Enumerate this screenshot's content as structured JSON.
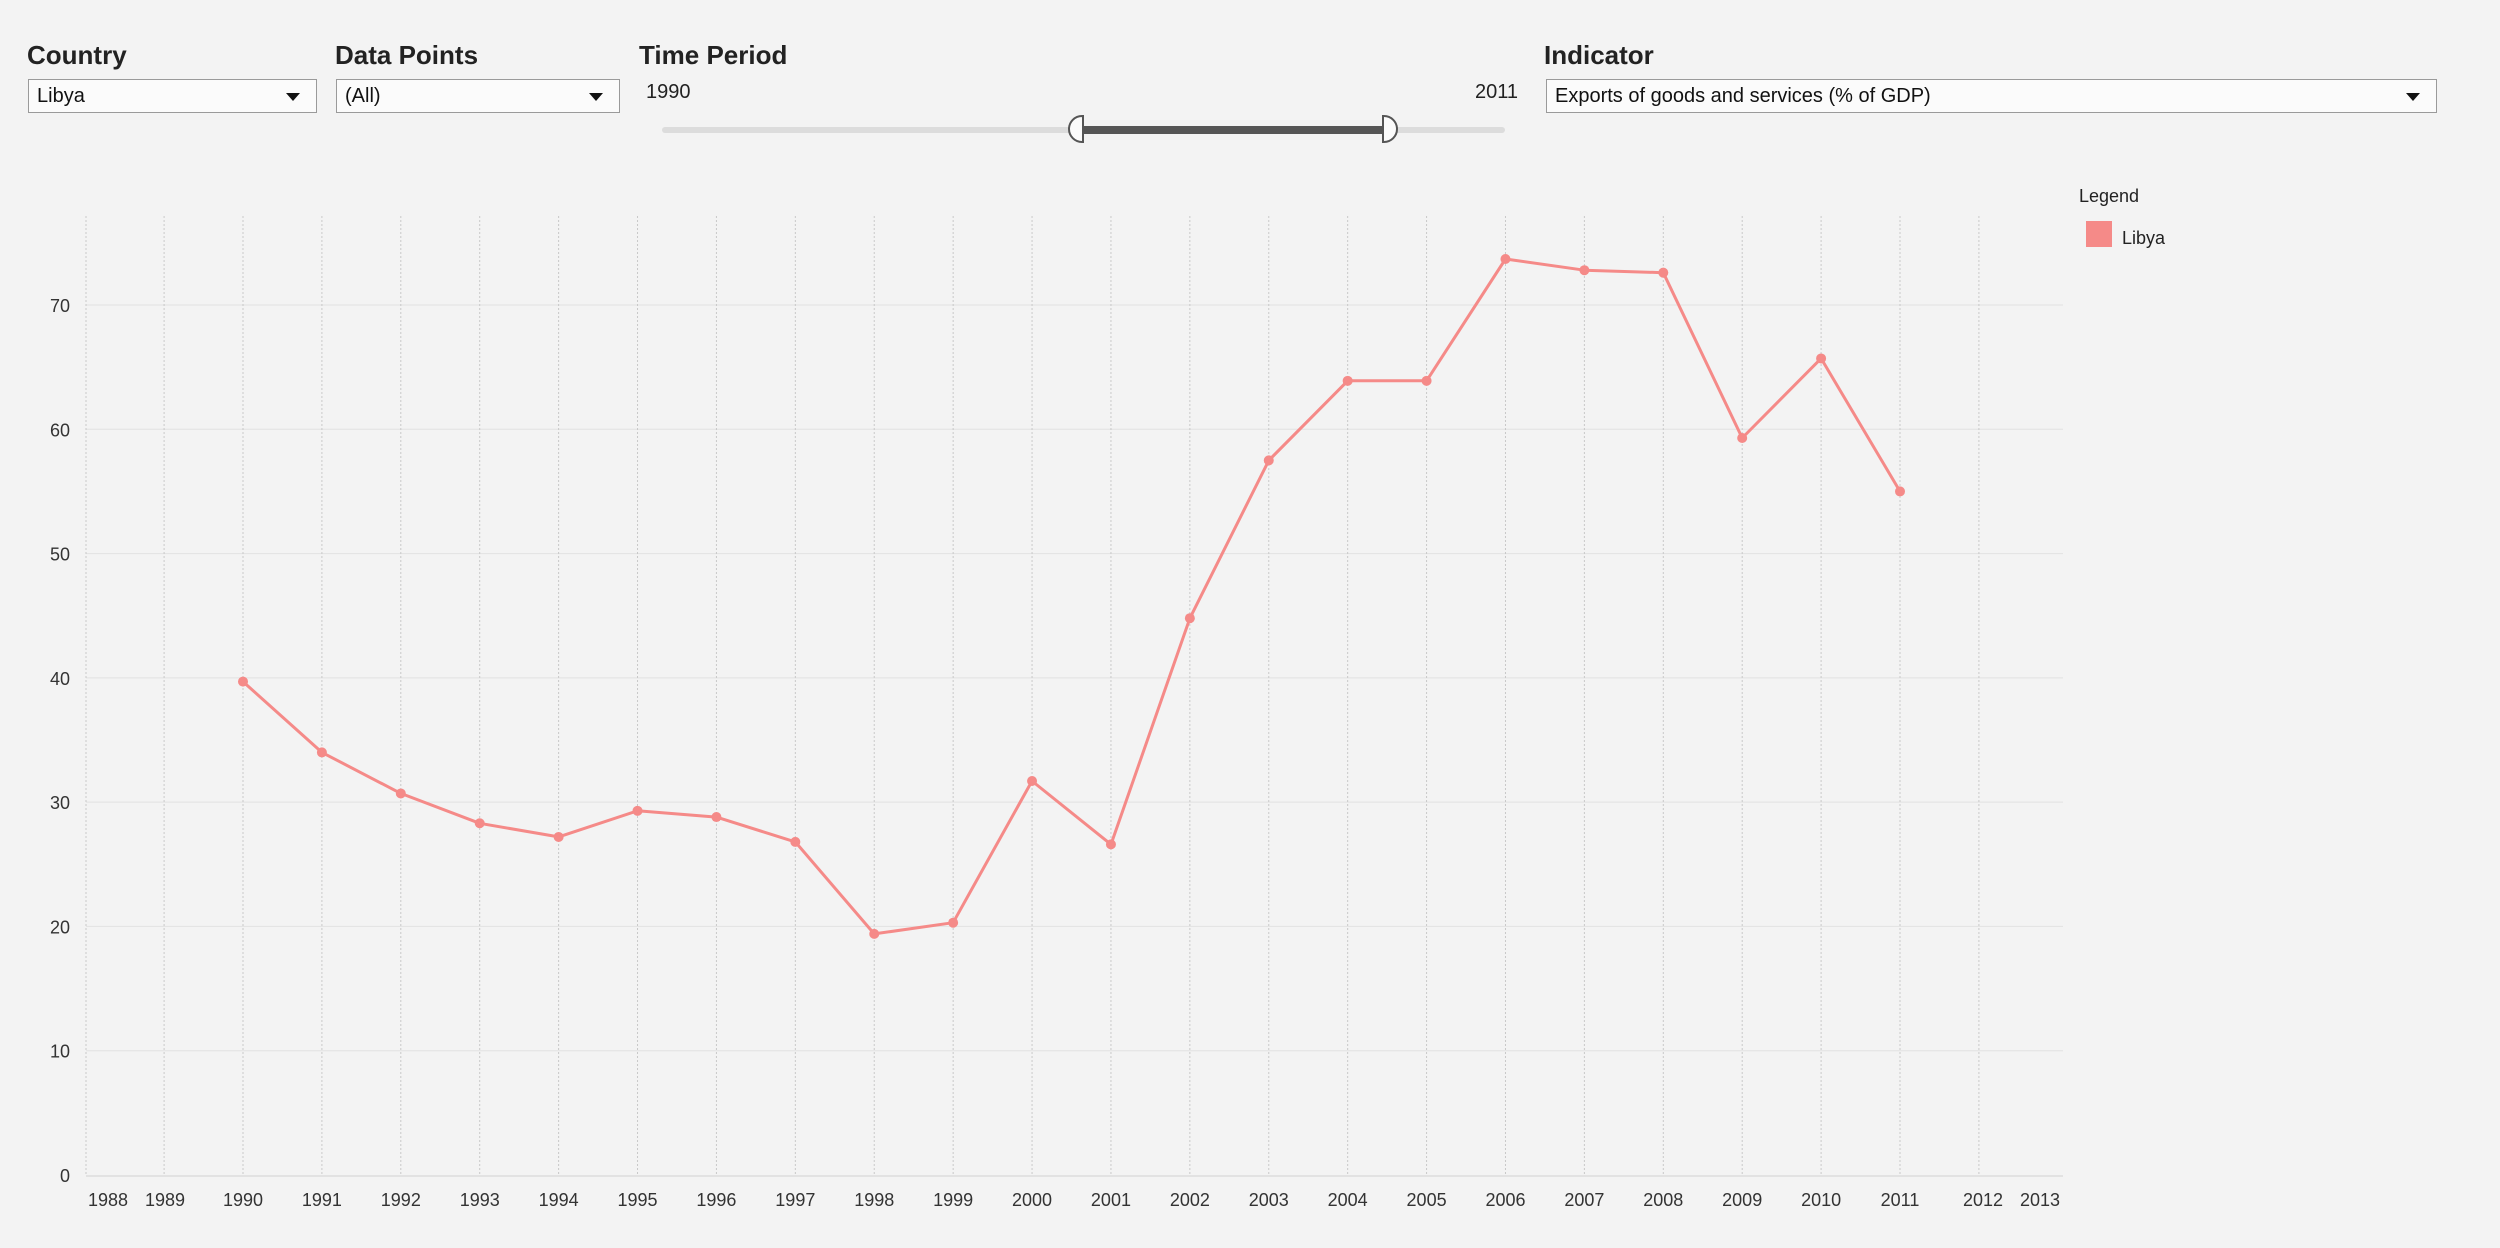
{
  "controls": {
    "country": {
      "title": "Country",
      "value": "Libya"
    },
    "data_points": {
      "title": "Data Points",
      "value": "(All)"
    },
    "time_period": {
      "title": "Time Period",
      "start": "1990",
      "end": "2011"
    },
    "indicator": {
      "title": "Indicator",
      "value": "Exports of goods and services (% of GDP)"
    }
  },
  "legend": {
    "title": "Legend"
  },
  "colors": {
    "series": "#f58a88",
    "grid": "#e2e2e2",
    "vgrid": "#c8c8c8"
  },
  "chart_data": {
    "type": "line",
    "title": "",
    "xlabel": "",
    "ylabel": "",
    "x_ticks": [
      "1988",
      "1989",
      "1990",
      "1991",
      "1992",
      "1993",
      "1994",
      "1995",
      "1996",
      "1997",
      "1998",
      "1999",
      "2000",
      "2001",
      "2002",
      "2003",
      "2004",
      "2005",
      "2006",
      "2007",
      "2008",
      "2009",
      "2010",
      "2011",
      "2012",
      "2013"
    ],
    "y_ticks": [
      0,
      10,
      20,
      30,
      40,
      50,
      60,
      70
    ],
    "ylim": [
      0,
      77
    ],
    "grid": true,
    "legend_position": "top-right",
    "series": [
      {
        "name": "Libya",
        "x": [
          1990,
          1991,
          1992,
          1993,
          1994,
          1995,
          1996,
          1997,
          1998,
          1999,
          2000,
          2001,
          2002,
          2003,
          2004,
          2005,
          2006,
          2007,
          2008,
          2009,
          2010,
          2011
        ],
        "y": [
          39.7,
          34.0,
          30.7,
          28.3,
          27.2,
          29.3,
          28.8,
          26.8,
          19.4,
          20.3,
          31.7,
          26.6,
          44.8,
          57.5,
          63.9,
          63.9,
          73.7,
          72.8,
          72.6,
          59.3,
          65.7,
          55.0
        ]
      }
    ]
  }
}
